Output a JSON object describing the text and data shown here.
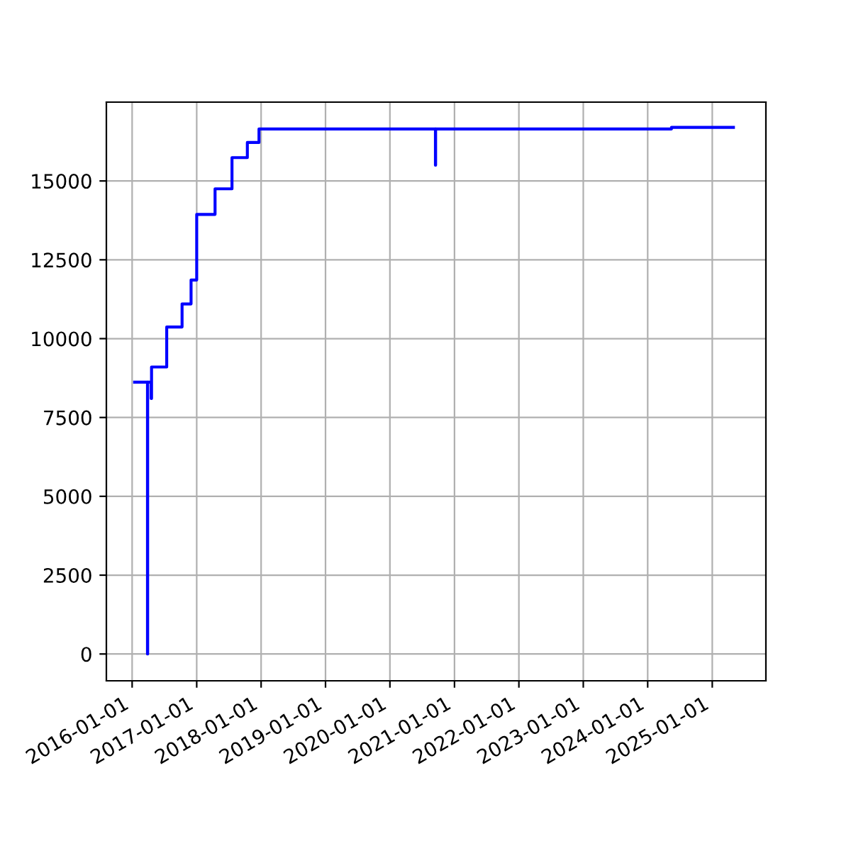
{
  "chart_data": {
    "type": "step",
    "x": [
      "2016-01-15",
      "2016-03-28",
      "2016-03-29",
      "2016-04-18",
      "2016-04-20",
      "2016-07-15",
      "2016-10-10",
      "2016-11-30",
      "2017-01-01",
      "2017-04-15",
      "2017-07-20",
      "2017-10-15",
      "2017-12-20",
      "2020-09-15",
      "2020-09-16",
      "2024-05-15",
      "2025-05-01"
    ],
    "series": [
      {
        "color": "#0000ff",
        "values": [
          8620,
          0,
          8620,
          8100,
          9100,
          10370,
          11100,
          11860,
          13940,
          14750,
          15740,
          16220,
          16650,
          15500,
          16650,
          16700,
          16700
        ]
      }
    ],
    "xlim": [
      "2015-08-08",
      "2025-11-01"
    ],
    "xticks": [
      {
        "value": "2016-01-01",
        "label": "2016-01-01"
      },
      {
        "value": "2017-01-01",
        "label": "2017-01-01"
      },
      {
        "value": "2018-01-01",
        "label": "2018-01-01"
      },
      {
        "value": "2019-01-01",
        "label": "2019-01-01"
      },
      {
        "value": "2020-01-01",
        "label": "2020-01-01"
      },
      {
        "value": "2021-01-01",
        "label": "2021-01-01"
      },
      {
        "value": "2022-01-01",
        "label": "2022-01-01"
      },
      {
        "value": "2023-01-01",
        "label": "2023-01-01"
      },
      {
        "value": "2024-01-01",
        "label": "2024-01-01"
      },
      {
        "value": "2025-01-01",
        "label": "2025-01-01"
      }
    ],
    "ylim": [
      -850,
      17500
    ],
    "yticks": [
      0,
      2500,
      5000,
      7500,
      10000,
      12500,
      15000
    ],
    "grid": true,
    "line_style": "solid",
    "marker": "none",
    "legend": false
  }
}
